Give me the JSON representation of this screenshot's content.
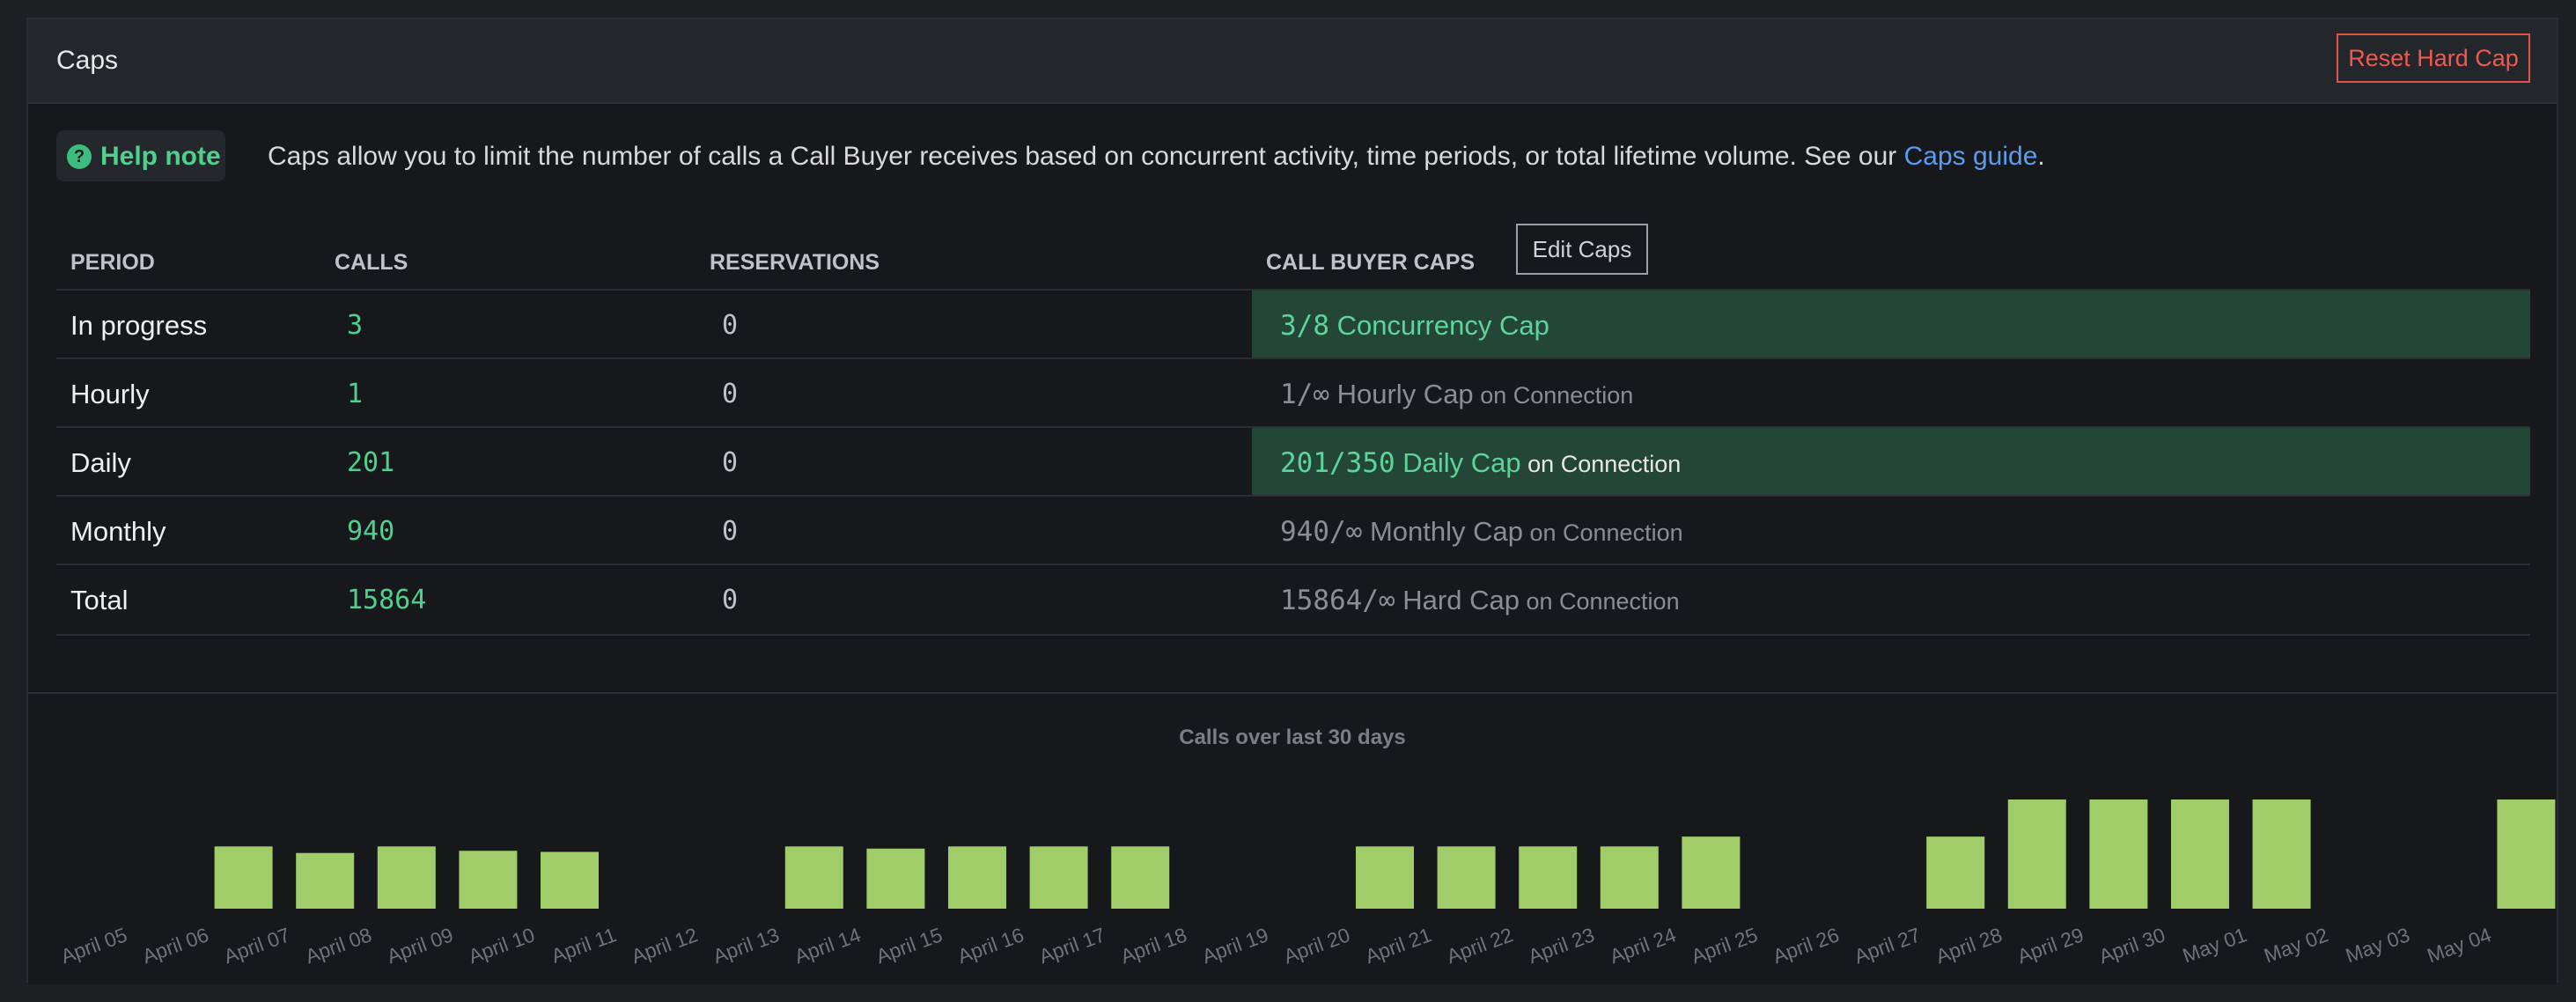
{
  "panel": {
    "title": "Caps",
    "reset_label": "Reset Hard Cap"
  },
  "help": {
    "badge": "Help note",
    "icon": "question-circle-icon",
    "text": "Caps allow you to limit the number of calls a Call Buyer receives based on concurrent activity, time periods, or total lifetime volume. See our ",
    "link": "Caps guide",
    "suffix": "."
  },
  "table": {
    "headers": {
      "period": "PERIOD",
      "calls": "CALLS",
      "reservations": "RESERVATIONS",
      "caps": "CALL BUYER CAPS"
    },
    "edit_label": "Edit Caps",
    "rows": [
      {
        "period": "In progress",
        "calls": "3",
        "reservations": "0",
        "cap_num": "3/8",
        "cap_label": " Concurrency Cap",
        "cap_sub": "",
        "active": true
      },
      {
        "period": "Hourly",
        "calls": "1",
        "reservations": "0",
        "cap_num": "1/∞",
        "cap_label": " Hourly Cap",
        "cap_sub": " on Connection",
        "active": false
      },
      {
        "period": "Daily",
        "calls": "201",
        "reservations": "0",
        "cap_num": "201/350",
        "cap_label": " Daily Cap",
        "cap_sub": " on Connection",
        "active": true
      },
      {
        "period": "Monthly",
        "calls": "940",
        "reservations": "0",
        "cap_num": "940/∞",
        "cap_label": " Monthly Cap",
        "cap_sub": " on Connection",
        "active": false
      },
      {
        "period": "Total",
        "calls": "15864",
        "reservations": "0",
        "cap_num": "15864/∞",
        "cap_label": " Hard Cap",
        "cap_sub": " on Connection",
        "active": false
      }
    ]
  },
  "chart_data": {
    "type": "bar",
    "title": "Calls over last 30 days",
    "categories": [
      "April 05",
      "April 06",
      "April 07",
      "April 08",
      "April 09",
      "April 10",
      "April 11",
      "April 12",
      "April 13",
      "April 14",
      "April 15",
      "April 16",
      "April 17",
      "April 18",
      "April 19",
      "April 20",
      "April 21",
      "April 22",
      "April 23",
      "April 24",
      "April 25",
      "April 26",
      "April 27",
      "April 28",
      "April 29",
      "April 30",
      "May 01",
      "May 02",
      "May 03",
      "May 04"
    ],
    "values": [
      0,
      57,
      51,
      57,
      53,
      52,
      0,
      0,
      57,
      55,
      57,
      57,
      57,
      0,
      0,
      57,
      57,
      57,
      57,
      66,
      0,
      0,
      66,
      100,
      100,
      100,
      100,
      0,
      0,
      100
    ],
    "ylim": [
      0,
      100
    ],
    "color": "#a0cd6a",
    "grid": false,
    "legend": "none"
  }
}
